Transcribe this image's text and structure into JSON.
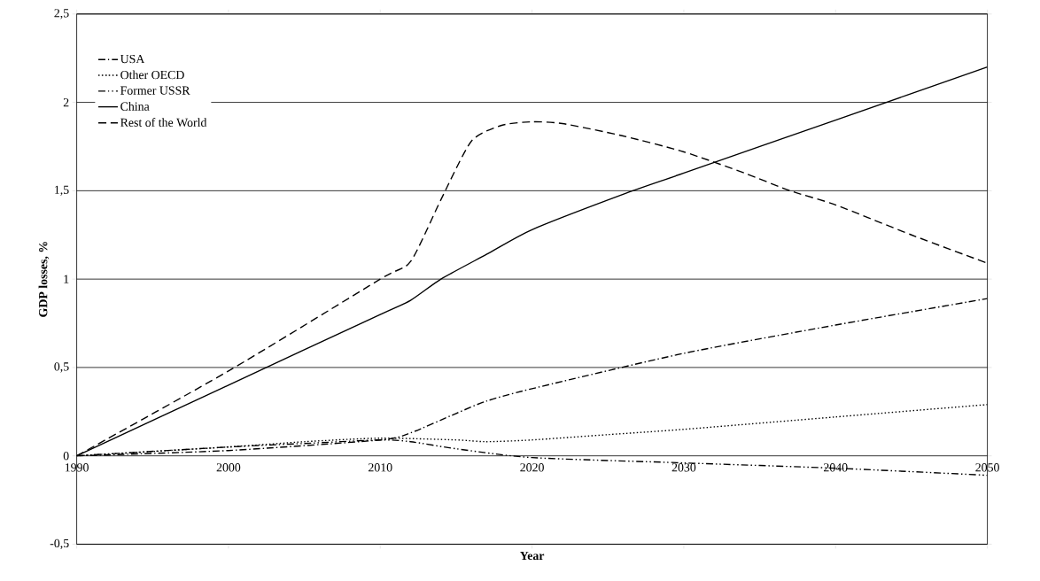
{
  "chart_data": {
    "type": "line",
    "xlabel": "Year",
    "ylabel": "GDP losses, %",
    "xlim": [
      1990,
      2050
    ],
    "ylim": [
      -0.5,
      2.5
    ],
    "xticks": [
      1990,
      2000,
      2010,
      2020,
      2030,
      2040,
      2050
    ],
    "yticks": [
      {
        "value": -0.5,
        "label": "-0,5"
      },
      0,
      {
        "value": 0.5,
        "label": "0,5"
      },
      1,
      {
        "value": 1.5,
        "label": "1,5"
      },
      2,
      {
        "value": 2.5,
        "label": "2,5"
      }
    ],
    "grid": "y",
    "legend": "top left",
    "marker": "none",
    "series": [
      {
        "name": "USA",
        "color": "#000000",
        "line_style": "dashdot",
        "x": [
          1990,
          2000,
          2010,
          2012,
          2015,
          2017,
          2020,
          2030,
          2040,
          2050
        ],
        "values": [
          0,
          0.03,
          0.09,
          0.13,
          0.24,
          0.31,
          0.38,
          0.58,
          0.74,
          0.89
        ]
      },
      {
        "name": "Other OECD",
        "color": "#000000",
        "line_style": "dotted",
        "x": [
          1990,
          2000,
          2005,
          2010,
          2015,
          2017,
          2020,
          2025,
          2030,
          2040,
          2050
        ],
        "values": [
          0,
          0.05,
          0.08,
          0.1,
          0.09,
          0.08,
          0.09,
          0.12,
          0.15,
          0.22,
          0.29
        ]
      },
      {
        "name": "Former USSR",
        "color": "#000000",
        "line_style": "dashdotdot",
        "x": [
          1990,
          2000,
          2005,
          2010,
          2012,
          2015,
          2020,
          2030,
          2040,
          2050
        ],
        "values": [
          0,
          0.05,
          0.07,
          0.09,
          0.08,
          0.04,
          -0.01,
          -0.04,
          -0.07,
          -0.11
        ]
      },
      {
        "name": "China",
        "color": "#000000",
        "line_style": "solid",
        "x": [
          1990,
          2000,
          2010,
          2012,
          2014,
          2017,
          2020,
          2026,
          2030,
          2040,
          2050
        ],
        "values": [
          0,
          0.4,
          0.8,
          0.88,
          1.0,
          1.14,
          1.28,
          1.48,
          1.6,
          1.9,
          2.2
        ]
      },
      {
        "name": "Rest of the World",
        "color": "#000000",
        "line_style": "dashed",
        "x": [
          1990,
          2000,
          2010,
          2012,
          2014,
          2016,
          2018,
          2020,
          2022,
          2026,
          2030,
          2034,
          2037,
          2040,
          2045,
          2050
        ],
        "values": [
          0,
          0.48,
          1.0,
          1.1,
          1.45,
          1.78,
          1.87,
          1.89,
          1.88,
          1.81,
          1.72,
          1.6,
          1.5,
          1.42,
          1.25,
          1.09
        ]
      }
    ]
  }
}
